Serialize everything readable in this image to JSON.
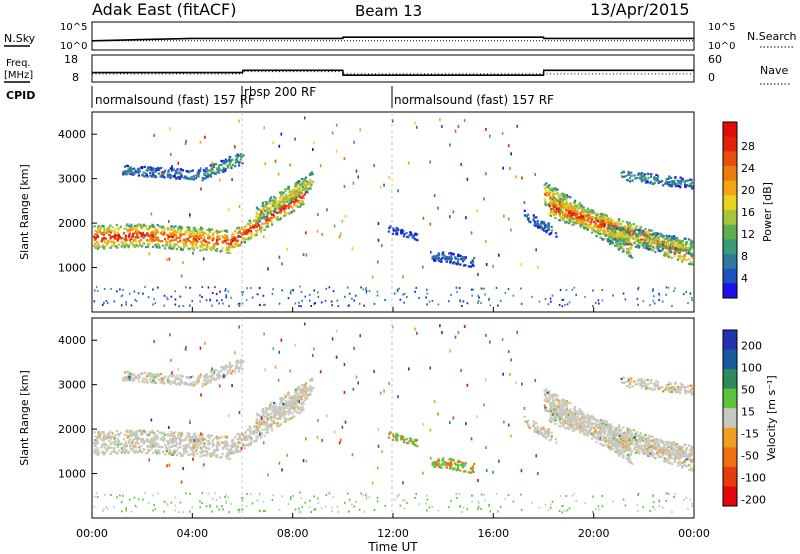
{
  "header": {
    "station": "Adak East (fitACF)",
    "beam": "Beam 13",
    "date": "13/Apr/2015"
  },
  "strip_labels": {
    "nsky": "N.Sky",
    "nsearch": "N.Search",
    "freq": "Freq.",
    "freq_unit": "[MHz]",
    "nave": "Nave",
    "cpid": "CPID"
  },
  "chart_data": [
    {
      "type": "line",
      "panel": "noise",
      "series": [
        {
          "name": "N.Sky",
          "x": [
            0,
            2,
            4,
            6,
            8,
            10,
            10.01,
            12,
            14,
            16,
            18,
            18.01,
            20,
            22,
            24
          ],
          "y": [
            31.6,
            56.2,
            100,
            100,
            100,
            100,
            178,
            178,
            178,
            178,
            178,
            100,
            100,
            100,
            100
          ]
        },
        {
          "name": "N.Search",
          "x": [
            0,
            12,
            24
          ],
          "y": [
            31.6,
            31.6,
            31.6
          ]
        }
      ],
      "ylabel_left": [
        "10^0",
        "10^5"
      ],
      "ylabel_right": [
        "10^0",
        "10^5"
      ],
      "log_scale": true
    },
    {
      "type": "line",
      "panel": "frequency",
      "series": [
        {
          "name": "Freq.",
          "x": [
            0,
            6,
            6.01,
            10,
            10.01,
            18,
            18.01,
            24
          ],
          "y": [
            11.2,
            11.2,
            12.2,
            12.2,
            10.1,
            10.1,
            12.2,
            12.2
          ]
        },
        {
          "name": "Nave",
          "x": [
            0,
            6,
            6.01,
            10,
            10.01,
            24
          ],
          "y": [
            16,
            16,
            22,
            22,
            16,
            16
          ]
        }
      ],
      "ylim_left": [
        8,
        18
      ],
      "yticks_left": [
        "8",
        "18"
      ],
      "ylim_right": [
        0,
        60
      ],
      "yticks_right": [
        "0",
        "60"
      ]
    },
    {
      "type": "table",
      "panel": "cpid",
      "segments": [
        {
          "label": "normalsound (fast) 157 RF",
          "start": 0,
          "end": 6
        },
        {
          "label": "rbsp 200 RF",
          "start": 6,
          "end": 12
        },
        {
          "label": "normalsound (fast) 157 RF",
          "start": 12,
          "end": 24
        }
      ]
    },
    {
      "type": "heatmap",
      "panel": "power",
      "ylabel": "Slant Range [km]",
      "yticks": [
        1000,
        2000,
        3000,
        4000
      ],
      "ylim": [
        0,
        4500
      ],
      "colorbar_label": "Power [dB]",
      "colorbar_ticks": [
        4,
        8,
        12,
        16,
        20,
        24,
        28
      ],
      "colorbar_colors": [
        "#1a12e6",
        "#214fc4",
        "#2f7a9c",
        "#3a9a7a",
        "#5fae52",
        "#a8c43a",
        "#e8d41c",
        "#f3a513",
        "#ee7a10",
        "#ea4c0d",
        "#e4200b",
        "#e10c0a"
      ]
    },
    {
      "type": "heatmap",
      "panel": "velocity",
      "ylabel": "Slant Range [km]",
      "yticks": [
        1000,
        2000,
        3000,
        4000
      ],
      "ylim": [
        0,
        4500
      ],
      "colorbar_label": "Velocity [m s⁻¹]",
      "colorbar_ticks": [
        200,
        100,
        50,
        15,
        -15,
        -50,
        -100,
        -200
      ],
      "colorbar_colors": [
        "#2232b0",
        "#1c5aa0",
        "#2e8a5a",
        "#5cc43c",
        "#c8c8c0",
        "#f0a020",
        "#ee7010",
        "#e83a0a",
        "#e00808"
      ]
    }
  ],
  "xaxis": {
    "ticks": [
      "00:00",
      "04:00",
      "08:00",
      "12:00",
      "16:00",
      "20:00",
      "00:00"
    ],
    "label": "Time UT"
  }
}
